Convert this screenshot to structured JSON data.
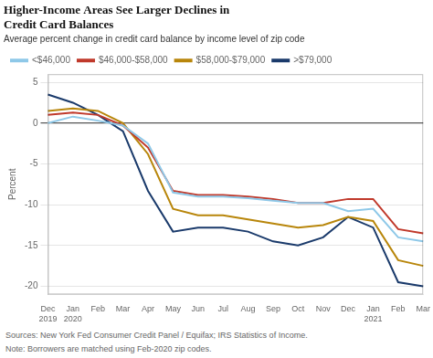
{
  "chart_data": {
    "type": "line",
    "title": [
      "Higher-Income Areas See Larger Declines in",
      "Credit Card Balances"
    ],
    "subtitle": "Average percent change in credit card balance by income level of zip code",
    "ylabel": "Percent",
    "annotations": [
      "Sources: New York Fed Consumer Credit Panel / Equifax; IRS Statistics of Income.",
      "Note: Borrowers are matched using Feb-2020 zip codes."
    ],
    "categories": [
      "Dec\n2019",
      "Jan\n2020",
      "Feb",
      "Mar",
      "Apr",
      "May",
      "Jun",
      "Jul",
      "Aug",
      "Sep",
      "Oct",
      "Nov",
      "Dec",
      "Jan\n2021",
      "Feb",
      "Mar"
    ],
    "series": [
      {
        "name": "<$46,000",
        "color": "#8ec8e8",
        "values": [
          0.0,
          0.8,
          0.3,
          -0.3,
          -2.5,
          -8.5,
          -9.0,
          -9.0,
          -9.2,
          -9.5,
          -9.8,
          -9.8,
          -10.8,
          -10.5,
          -14.0,
          -14.5
        ]
      },
      {
        "name": "$46,000-$58,000",
        "color": "#c0392b",
        "values": [
          1.0,
          1.3,
          1.0,
          -0.3,
          -3.0,
          -8.3,
          -8.8,
          -8.8,
          -9.0,
          -9.3,
          -9.8,
          -9.8,
          -9.3,
          -9.3,
          -13.0,
          -13.5
        ]
      },
      {
        "name": "$58,000-$79,000",
        "color": "#b8860b",
        "values": [
          1.5,
          1.8,
          1.5,
          0.0,
          -3.8,
          -10.5,
          -11.3,
          -11.3,
          -11.8,
          -12.3,
          -12.8,
          -12.5,
          -11.5,
          -12.0,
          -16.8,
          -17.5
        ]
      },
      {
        "name": ">$79,000",
        "color": "#1a3a6b",
        "values": [
          3.5,
          2.5,
          1.0,
          -1.0,
          -8.3,
          -13.3,
          -12.8,
          -12.8,
          -13.3,
          -14.5,
          -15.0,
          -14.0,
          -11.5,
          -12.8,
          -19.5,
          -20.0
        ]
      }
    ],
    "ylim": [
      -21,
      6
    ],
    "yticks": [
      -20,
      -15,
      -10,
      -5,
      0,
      5
    ],
    "grid": true,
    "legend": "top"
  }
}
